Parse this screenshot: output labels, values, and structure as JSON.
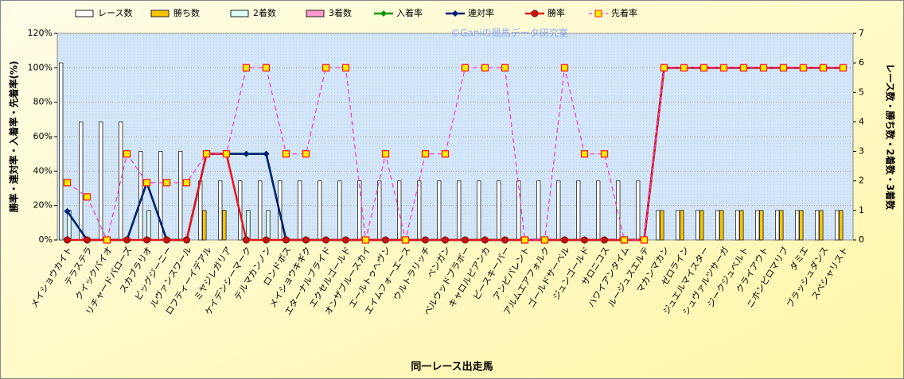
{
  "chart_data": {
    "type": "combo",
    "watermark": "©Ganiの競馬データ研究室",
    "x_label": "同一レース出走馬",
    "y_label": "勝率・連対率・入着率・先着率(%)",
    "y2_label": "レース数・勝ち数・2着数・3着数",
    "categories": [
      "メイショウカイト",
      "テラステラ",
      "クイックパイオ",
      "リチャードバローズ",
      "スカブラリオ",
      "ビッグジーニー",
      "ルヴァンスワール",
      "ロフティーイデアル",
      "ミヤジレガリア",
      "ケイデンシーマーク",
      "テルマカンノン",
      "ロンドボス",
      "メイショウキギク",
      "エターナルブライド",
      "エクセルゴールド",
      "オンザブルースカイ",
      "エールトゥヘヴン",
      "エイムフォーエース",
      "ウルトラリッチ",
      "ベンガン",
      "ベルウッドブラボー",
      "キャロルビアンカ",
      "ピースキーパー",
      "アンビバレント",
      "アルムエアフォルク",
      "ゴールドサーベル",
      "ジュンゴールド",
      "サロニコス",
      "ハワイアンタイム",
      "ルージュスエルテ",
      "マカンマカン",
      "ゼロライン",
      "ジュエルマイスター",
      "シュヴァルツサーガ",
      "ジークジュベルト",
      "クライアウト",
      "ニホンピロマリブ",
      "ダミエ",
      "ブラッシュダンス",
      "スペシャリスト"
    ],
    "series": [
      {
        "name": "レース数",
        "kind": "bar",
        "axis": "y2",
        "color": "#ffffff",
        "values": [
          6,
          4,
          4,
          4,
          3,
          3,
          3,
          2,
          2,
          2,
          2,
          2,
          2,
          2,
          2,
          2,
          2,
          2,
          2,
          2,
          2,
          2,
          2,
          2,
          2,
          2,
          2,
          2,
          2,
          2,
          1,
          1,
          1,
          1,
          1,
          1,
          1,
          1,
          1,
          1
        ]
      },
      {
        "name": "勝ち数",
        "kind": "bar",
        "axis": "y2",
        "color": "#f5c400",
        "values": [
          0,
          0,
          0,
          0,
          0,
          0,
          0,
          1,
          1,
          0,
          0,
          0,
          0,
          0,
          0,
          0,
          0,
          0,
          0,
          0,
          0,
          0,
          0,
          0,
          0,
          0,
          0,
          0,
          0,
          0,
          1,
          1,
          1,
          1,
          1,
          1,
          1,
          1,
          1,
          1
        ]
      },
      {
        "name": "2着数",
        "kind": "bar",
        "axis": "y2",
        "color": "#dcfff6",
        "values": [
          1,
          0,
          0,
          0,
          1,
          0,
          0,
          0,
          0,
          1,
          1,
          0,
          0,
          0,
          0,
          0,
          0,
          0,
          0,
          0,
          0,
          0,
          0,
          0,
          0,
          0,
          0,
          0,
          0,
          0,
          0,
          0,
          0,
          0,
          0,
          0,
          0,
          0,
          0,
          0
        ]
      },
      {
        "name": "3着数",
        "kind": "bar",
        "axis": "y2",
        "color": "#ff99cc",
        "values": [
          0,
          0,
          0,
          0,
          0,
          0,
          0,
          0,
          0,
          0,
          0,
          0,
          0,
          0,
          0,
          0,
          0,
          0,
          0,
          0,
          0,
          0,
          0,
          0,
          0,
          0,
          0,
          0,
          0,
          0,
          0,
          0,
          0,
          0,
          0,
          0,
          0,
          0,
          0,
          0
        ]
      },
      {
        "name": "入着率",
        "kind": "line",
        "marker": "diamond",
        "color": "#009900",
        "values": [
          16.7,
          0,
          0,
          0,
          33.3,
          0,
          0,
          50,
          50,
          50,
          50,
          0,
          0,
          0,
          0,
          0,
          0,
          0,
          0,
          0,
          0,
          0,
          0,
          0,
          0,
          0,
          0,
          0,
          0,
          0,
          100,
          100,
          100,
          100,
          100,
          100,
          100,
          100,
          100,
          100
        ]
      },
      {
        "name": "連対率",
        "kind": "line",
        "marker": "diamond",
        "color": "#001f7a",
        "values": [
          16.7,
          0,
          0,
          0,
          33.3,
          0,
          0,
          50,
          50,
          50,
          50,
          0,
          0,
          0,
          0,
          0,
          0,
          0,
          0,
          0,
          0,
          0,
          0,
          0,
          0,
          0,
          0,
          0,
          0,
          0,
          100,
          100,
          100,
          100,
          100,
          100,
          100,
          100,
          100,
          100
        ]
      },
      {
        "name": "勝率",
        "kind": "line",
        "marker": "circle",
        "color": "#e8141e",
        "values": [
          0,
          0,
          0,
          0,
          0,
          0,
          0,
          50,
          50,
          0,
          0,
          0,
          0,
          0,
          0,
          0,
          0,
          0,
          0,
          0,
          0,
          0,
          0,
          0,
          0,
          0,
          0,
          0,
          0,
          0,
          100,
          100,
          100,
          100,
          100,
          100,
          100,
          100,
          100,
          100
        ]
      },
      {
        "name": "先着率",
        "kind": "line",
        "marker": "square",
        "dash": true,
        "color": "#ff33cc",
        "values": [
          33.3,
          25,
          0,
          50,
          33.3,
          33.3,
          33.3,
          50,
          50,
          100,
          100,
          50,
          50,
          100,
          100,
          0,
          50,
          0,
          50,
          50,
          100,
          100,
          100,
          0,
          0,
          100,
          50,
          50,
          0,
          0,
          100,
          100,
          100,
          100,
          100,
          100,
          100,
          100,
          100,
          100
        ]
      }
    ],
    "ylim": [
      0,
      120
    ],
    "yticks": [
      {
        "value": 0,
        "label": "0%"
      },
      {
        "value": 20,
        "label": "20%"
      },
      {
        "value": 40,
        "label": "40%"
      },
      {
        "value": 60,
        "label": "60%"
      },
      {
        "value": 80,
        "label": "80%"
      },
      {
        "value": 100,
        "label": "100%"
      },
      {
        "value": 120,
        "label": "120%"
      }
    ],
    "y2lim": [
      0,
      7
    ],
    "y2ticks": [
      0,
      1,
      2,
      3,
      4,
      5,
      6,
      7
    ],
    "grid": true
  }
}
